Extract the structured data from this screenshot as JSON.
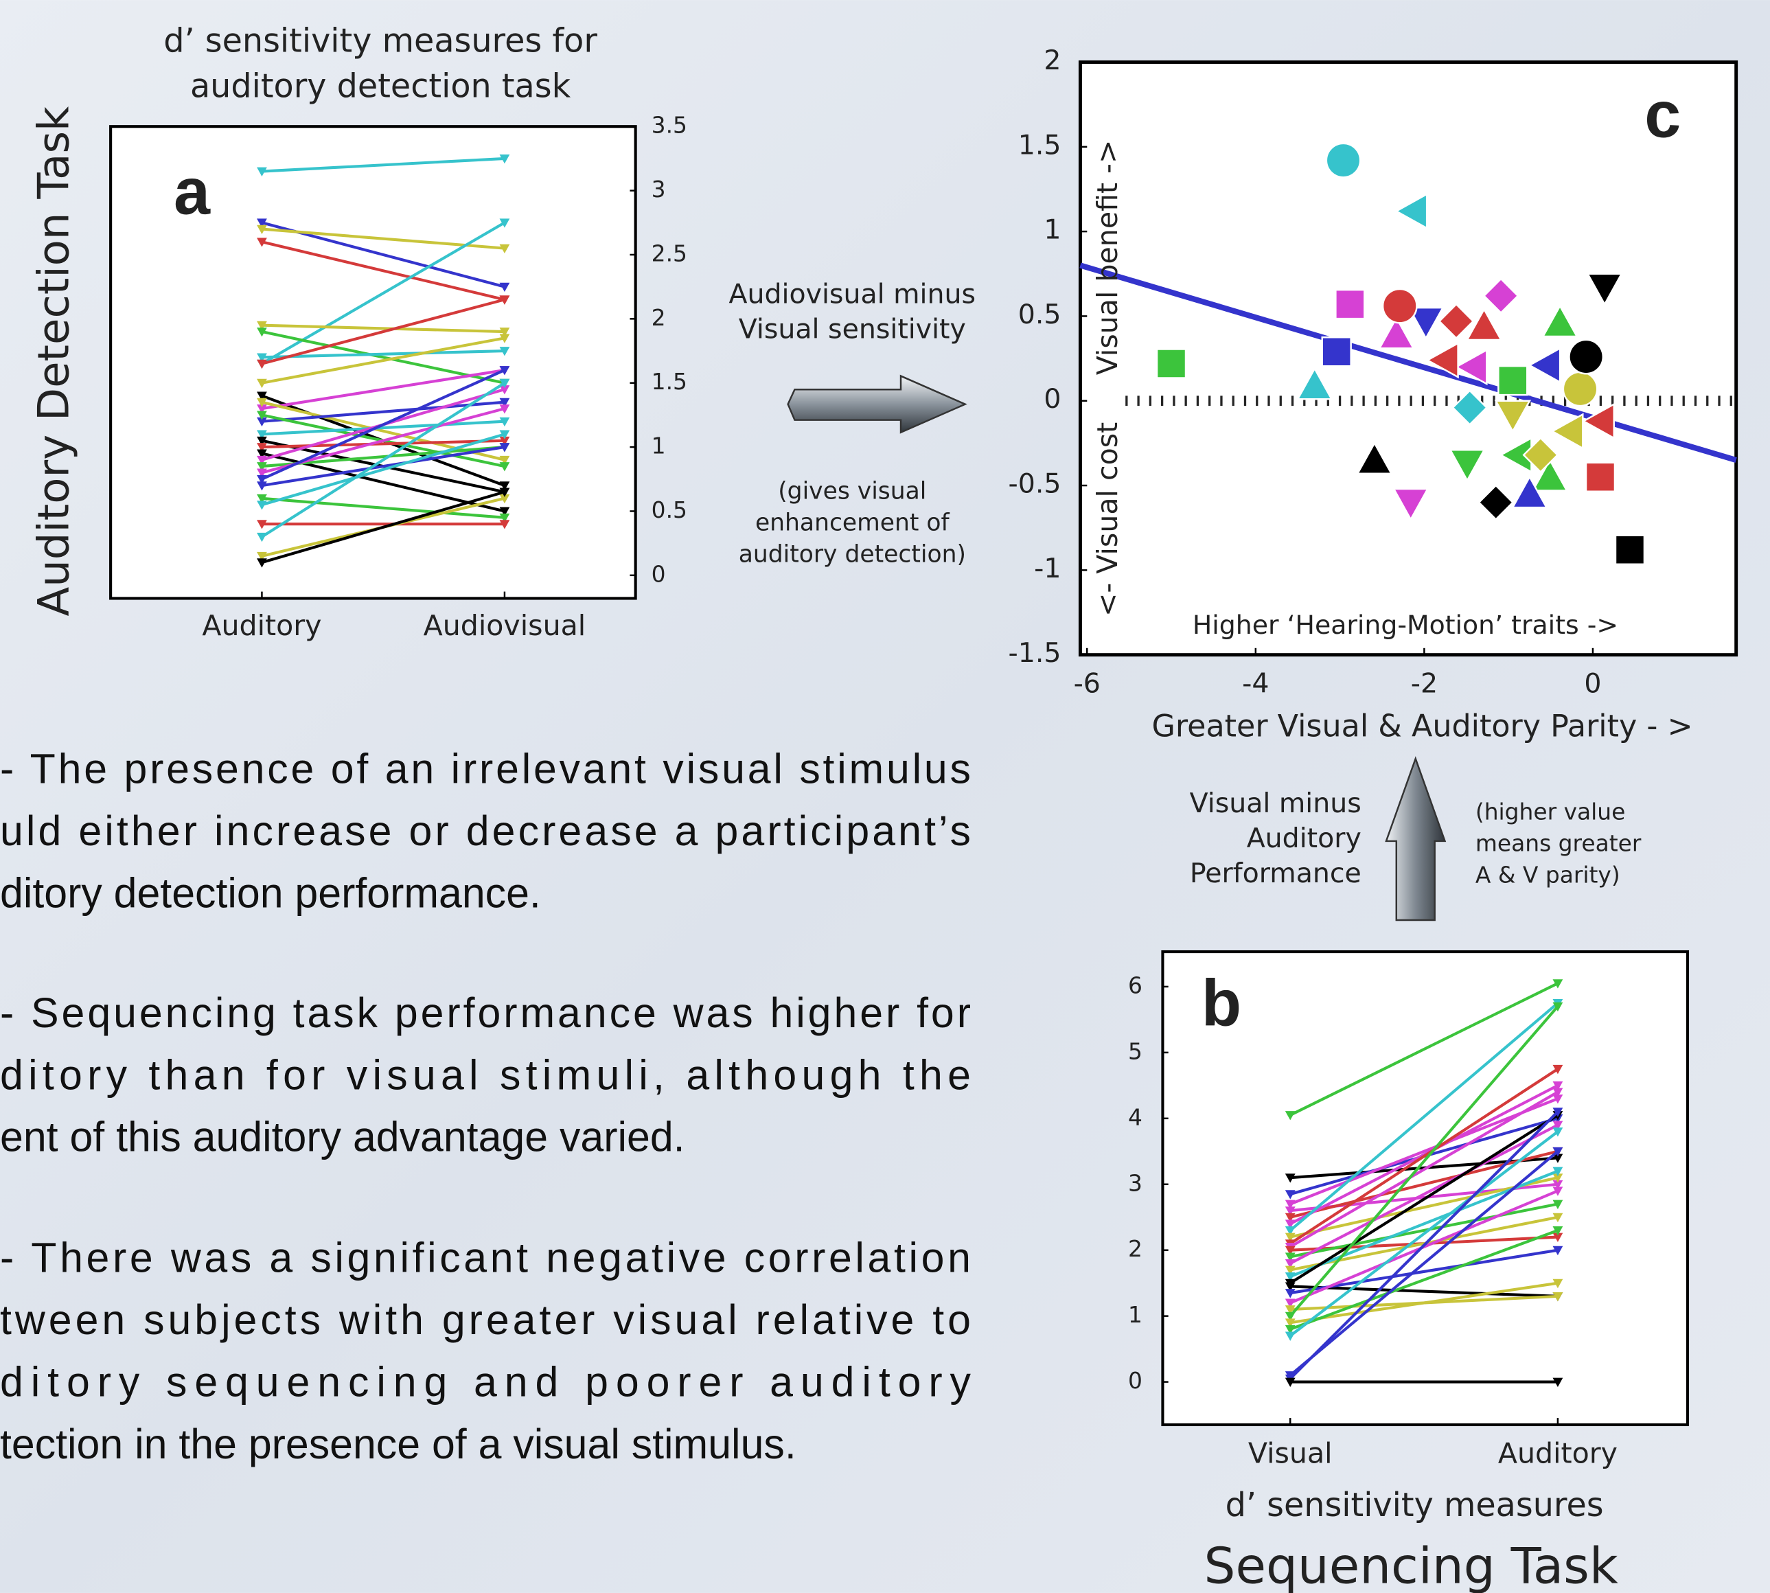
{
  "chart_data": [
    {
      "type": "line",
      "panel_label": "a",
      "title": [
        "d’ sensitivity measures for",
        "auditory detection task"
      ],
      "y_label": "Auditory Detection Task",
      "categories": [
        "Auditory",
        "Audiovisual"
      ],
      "ylim": [
        -0.18,
        3.5
      ],
      "yticks": [
        0,
        0.5,
        1,
        1.5,
        2,
        2.5,
        3,
        3.5
      ],
      "series": [
        {
          "color": "#36c3cc",
          "values": [
            3.15,
            3.25
          ]
        },
        {
          "color": "#3434cc",
          "values": [
            2.75,
            2.25
          ]
        },
        {
          "color": "#c8c43a",
          "values": [
            2.7,
            2.55
          ]
        },
        {
          "color": "#d43a3a",
          "values": [
            2.6,
            2.15
          ]
        },
        {
          "color": "#36c3cc",
          "values": [
            1.65,
            2.75
          ]
        },
        {
          "color": "#c8c43a",
          "values": [
            1.95,
            1.9
          ]
        },
        {
          "color": "#3cc43c",
          "values": [
            1.9,
            1.5
          ]
        },
        {
          "color": "#36c3cc",
          "values": [
            1.7,
            1.75
          ]
        },
        {
          "color": "#d43a3a",
          "values": [
            1.65,
            2.15
          ]
        },
        {
          "color": "#c8c43a",
          "values": [
            1.5,
            1.85
          ]
        },
        {
          "color": "#000000",
          "values": [
            1.4,
            0.7
          ]
        },
        {
          "color": "#d641d4",
          "values": [
            1.3,
            1.6
          ]
        },
        {
          "color": "#c8c43a",
          "values": [
            1.35,
            0.9
          ]
        },
        {
          "color": "#3434cc",
          "values": [
            1.2,
            1.35
          ]
        },
        {
          "color": "#3cc43c",
          "values": [
            1.25,
            0.85
          ]
        },
        {
          "color": "#36c3cc",
          "values": [
            1.1,
            1.2
          ]
        },
        {
          "color": "#000000",
          "values": [
            1.05,
            0.65
          ]
        },
        {
          "color": "#d43a3a",
          "values": [
            1.0,
            1.05
          ]
        },
        {
          "color": "#000000",
          "values": [
            0.95,
            0.5
          ]
        },
        {
          "color": "#d641d4",
          "values": [
            0.9,
            1.45
          ]
        },
        {
          "color": "#3cc43c",
          "values": [
            0.85,
            1.0
          ]
        },
        {
          "color": "#d641d4",
          "values": [
            0.8,
            1.3
          ]
        },
        {
          "color": "#3434cc",
          "values": [
            0.75,
            1.6
          ]
        },
        {
          "color": "#3434cc",
          "values": [
            0.7,
            1.0
          ]
        },
        {
          "color": "#3cc43c",
          "values": [
            0.6,
            0.45
          ]
        },
        {
          "color": "#36c3cc",
          "values": [
            0.55,
            1.1
          ]
        },
        {
          "color": "#d43a3a",
          "values": [
            0.4,
            0.4
          ]
        },
        {
          "color": "#36c3cc",
          "values": [
            0.3,
            1.5
          ]
        },
        {
          "color": "#c8c43a",
          "values": [
            0.15,
            0.6
          ]
        },
        {
          "color": "#000000",
          "values": [
            0.1,
            0.65
          ]
        }
      ]
    },
    {
      "type": "scatter",
      "panel_label": "c",
      "x_label": "Greater Visual & Auditory Parity - >",
      "annotations": [
        "Visual benefit ->",
        "<- Visual cost",
        "Higher ‘Hearing-Motion’ traits ->"
      ],
      "xlim": [
        -6.08,
        1.7
      ],
      "ylim": [
        -1.5,
        2
      ],
      "xticks": [
        -6,
        -4,
        -2,
        0
      ],
      "yticks": [
        2,
        1.5,
        1,
        0.5,
        0,
        -0.5,
        -1,
        -1.5
      ],
      "zero_line": true,
      "fit": {
        "color": "#3434cc",
        "x": [
          -6.08,
          1.7
        ],
        "y": [
          0.8,
          -0.35
        ]
      },
      "series": [
        {
          "color": "#36c3cc",
          "marker": "circle",
          "x": [
            -2.96
          ],
          "y": [
            1.42
          ]
        },
        {
          "color": "#36c3cc",
          "marker": "triangle-left",
          "x": [
            -2.13
          ],
          "y": [
            1.12
          ]
        },
        {
          "color": "#36c3cc",
          "marker": "triangle-up",
          "x": [
            -3.3
          ],
          "y": [
            0.09
          ]
        },
        {
          "color": "#36c3cc",
          "marker": "diamond",
          "x": [
            -1.46
          ],
          "y": [
            -0.04
          ]
        },
        {
          "color": "#3cc43c",
          "marker": "square",
          "x": [
            -5.0,
            -0.95
          ],
          "y": [
            0.22,
            0.12
          ]
        },
        {
          "color": "#3cc43c",
          "marker": "triangle-up",
          "x": [
            -0.39,
            -0.51
          ],
          "y": [
            0.46,
            -0.45
          ]
        },
        {
          "color": "#3cc43c",
          "marker": "triangle-down",
          "x": [
            -1.49
          ],
          "y": [
            -0.37
          ]
        },
        {
          "color": "#3cc43c",
          "marker": "triangle-left",
          "x": [
            -0.89
          ],
          "y": [
            -0.32
          ]
        },
        {
          "color": "#d641d4",
          "marker": "square",
          "x": [
            -2.88
          ],
          "y": [
            0.57
          ]
        },
        {
          "color": "#d641d4",
          "marker": "triangle-up",
          "x": [
            -2.33
          ],
          "y": [
            0.39
          ]
        },
        {
          "color": "#d641d4",
          "marker": "diamond",
          "x": [
            -1.09
          ],
          "y": [
            0.62
          ]
        },
        {
          "color": "#d641d4",
          "marker": "triangle-left",
          "x": [
            -1.42
          ],
          "y": [
            0.2
          ]
        },
        {
          "color": "#d641d4",
          "marker": "triangle-down",
          "x": [
            -2.16
          ],
          "y": [
            -0.6
          ]
        },
        {
          "color": "#3434cc",
          "marker": "square",
          "x": [
            -3.04
          ],
          "y": [
            0.29
          ]
        },
        {
          "color": "#3434cc",
          "marker": "triangle-down",
          "x": [
            -1.98
          ],
          "y": [
            0.47
          ]
        },
        {
          "color": "#3434cc",
          "marker": "triangle-left",
          "x": [
            -0.55
          ],
          "y": [
            0.21
          ]
        },
        {
          "color": "#3434cc",
          "marker": "triangle-up",
          "x": [
            -0.75
          ],
          "y": [
            -0.55
          ]
        },
        {
          "color": "#d43a3a",
          "marker": "circle",
          "x": [
            -2.29
          ],
          "y": [
            0.56
          ]
        },
        {
          "color": "#d43a3a",
          "marker": "diamond",
          "x": [
            -1.62
          ],
          "y": [
            0.47
          ]
        },
        {
          "color": "#d43a3a",
          "marker": "triangle-up",
          "x": [
            -1.29
          ],
          "y": [
            0.44
          ]
        },
        {
          "color": "#d43a3a",
          "marker": "triangle-left",
          "x": [
            -1.76,
            0.09
          ],
          "y": [
            0.24,
            -0.12
          ]
        },
        {
          "color": "#d43a3a",
          "marker": "square",
          "x": [
            0.09
          ],
          "y": [
            -0.45
          ]
        },
        {
          "color": "#c8c43a",
          "marker": "triangle-down",
          "x": [
            -0.95
          ],
          "y": [
            -0.08
          ]
        },
        {
          "color": "#c8c43a",
          "marker": "circle",
          "x": [
            -0.15
          ],
          "y": [
            0.07
          ]
        },
        {
          "color": "#c8c43a",
          "marker": "triangle-left",
          "x": [
            -0.28
          ],
          "y": [
            -0.18
          ]
        },
        {
          "color": "#c8c43a",
          "marker": "diamond",
          "x": [
            -0.62
          ],
          "y": [
            -0.32
          ]
        },
        {
          "color": "#000000",
          "marker": "triangle-down",
          "x": [
            0.14
          ],
          "y": [
            0.67
          ]
        },
        {
          "color": "#000000",
          "marker": "circle",
          "x": [
            -0.08
          ],
          "y": [
            0.26
          ]
        },
        {
          "color": "#000000",
          "marker": "triangle-up",
          "x": [
            -2.59
          ],
          "y": [
            -0.35
          ]
        },
        {
          "color": "#000000",
          "marker": "diamond",
          "x": [
            -1.15
          ],
          "y": [
            -0.6
          ]
        },
        {
          "color": "#000000",
          "marker": "square",
          "x": [
            0.44
          ],
          "y": [
            -0.88
          ]
        }
      ]
    },
    {
      "type": "line",
      "panel_label": "b",
      "subtitle": "d’ sensitivity measures",
      "title": [
        "Sequencing Task"
      ],
      "categories": [
        "Visual",
        "Auditory"
      ],
      "ylim": [
        -0.65,
        6.53
      ],
      "yticks": [
        0,
        1,
        2,
        3,
        4,
        5,
        6
      ],
      "series": [
        {
          "color": "#3cc43c",
          "values": [
            4.05,
            6.05
          ]
        },
        {
          "color": "#000000",
          "values": [
            3.1,
            3.4
          ]
        },
        {
          "color": "#3434cc",
          "values": [
            2.85,
            4.0
          ]
        },
        {
          "color": "#d641d4",
          "values": [
            2.7,
            4.3
          ]
        },
        {
          "color": "#d641d4",
          "values": [
            2.6,
            3.0
          ]
        },
        {
          "color": "#d43a3a",
          "values": [
            2.5,
            3.5
          ]
        },
        {
          "color": "#d641d4",
          "values": [
            2.4,
            4.5
          ]
        },
        {
          "color": "#36c3cc",
          "values": [
            2.3,
            5.75
          ]
        },
        {
          "color": "#c8c43a",
          "values": [
            2.2,
            3.1
          ]
        },
        {
          "color": "#d43a3a",
          "values": [
            2.1,
            4.75
          ]
        },
        {
          "color": "#d641d4",
          "values": [
            2.05,
            4.4
          ]
        },
        {
          "color": "#d43a3a",
          "values": [
            2.0,
            2.2
          ]
        },
        {
          "color": "#3cc43c",
          "values": [
            1.9,
            2.7
          ]
        },
        {
          "color": "#d641d4",
          "values": [
            1.8,
            3.9
          ]
        },
        {
          "color": "#c8c43a",
          "values": [
            1.7,
            2.5
          ]
        },
        {
          "color": "#36c3cc",
          "values": [
            1.6,
            3.2
          ]
        },
        {
          "color": "#000000",
          "values": [
            1.5,
            4.05
          ]
        },
        {
          "color": "#000000",
          "values": [
            1.45,
            1.3
          ]
        },
        {
          "color": "#3434cc",
          "values": [
            1.35,
            2.0
          ]
        },
        {
          "color": "#d641d4",
          "values": [
            1.2,
            2.9
          ]
        },
        {
          "color": "#c8c43a",
          "values": [
            1.1,
            1.3
          ]
        },
        {
          "color": "#3cc43c",
          "values": [
            1.0,
            5.7
          ]
        },
        {
          "color": "#c8c43a",
          "values": [
            0.9,
            1.5
          ]
        },
        {
          "color": "#3cc43c",
          "values": [
            0.8,
            2.3
          ]
        },
        {
          "color": "#36c3cc",
          "values": [
            0.7,
            3.8
          ]
        },
        {
          "color": "#3434cc",
          "values": [
            0.1,
            3.5
          ]
        },
        {
          "color": "#3434cc",
          "values": [
            0.05,
            4.1
          ]
        },
        {
          "color": "#000000",
          "values": [
            0,
            0
          ]
        }
      ]
    }
  ],
  "arrows": [
    {
      "label": [
        "Audiovisual minus",
        "Visual sensitivity"
      ],
      "note": [
        "(gives visual",
        "enhancement of",
        "auditory detection)"
      ]
    },
    {
      "label": [
        "Visual minus",
        "Auditory",
        "Performance"
      ],
      "note": [
        "(higher value",
        "means greater",
        "A & V parity)"
      ]
    }
  ],
  "body": [
    [
      "- The presence of an irrelevant visual stimulus",
      "uld either increase or decrease a participant’s",
      "ditory detection performance."
    ],
    [
      "- Sequencing task performance was higher for",
      "ditory   than for visual stimuli, although the",
      "ent of this auditory advantage varied."
    ],
    [
      "- There was a significant negative correlation",
      "tween subjects with greater visual relative to",
      "ditory sequencing and poorer auditory",
      "tection in the presence of a visual stimulus."
    ]
  ]
}
